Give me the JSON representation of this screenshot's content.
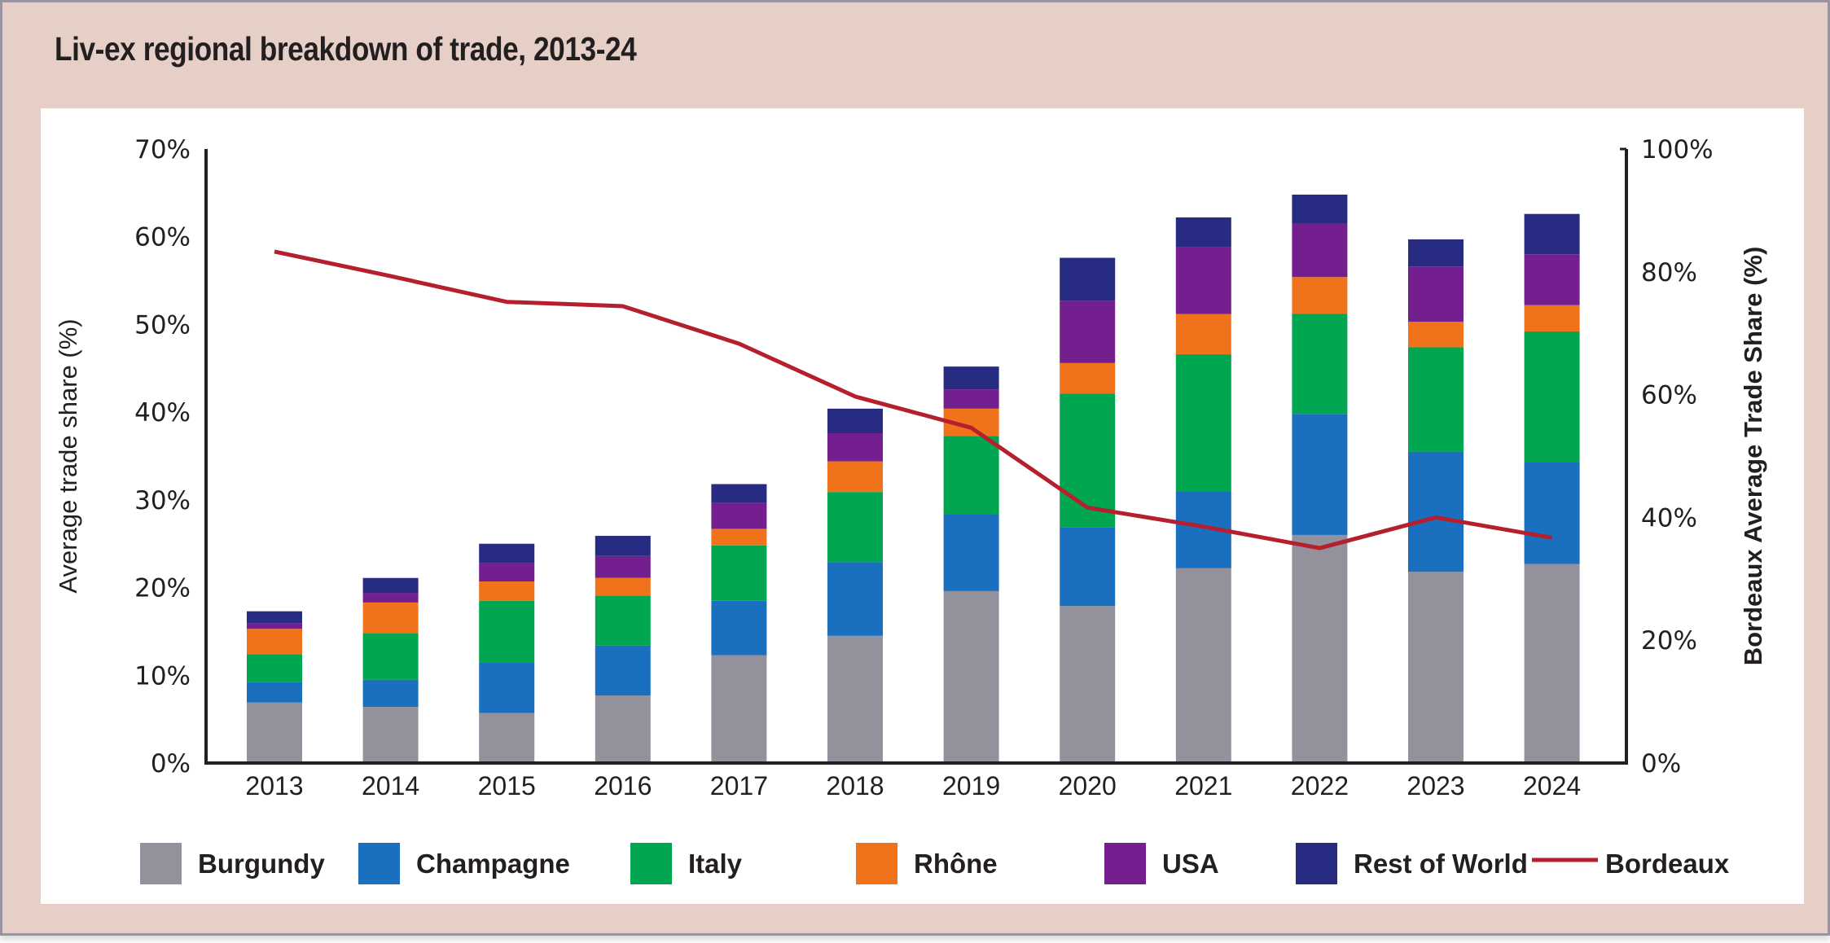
{
  "chart_data": {
    "type": "bar",
    "stacked": true,
    "title": "Liv-ex regional breakdown of trade, 2013-24",
    "xlabel": "",
    "ylabel": "Average trade share (%)",
    "y2label": "Bordeaux Average Trade Share (%)",
    "ylim": [
      0,
      70
    ],
    "y2lim": [
      0,
      100
    ],
    "yticks": [
      "0%",
      "10%",
      "20%",
      "30%",
      "40%",
      "50%",
      "60%",
      "70%"
    ],
    "y2ticks": [
      "0%",
      "20%",
      "40%",
      "60%",
      "80%",
      "100%"
    ],
    "grid": false,
    "legend_position": "bottom",
    "categories": [
      "2013",
      "2014",
      "2015",
      "2016",
      "2017",
      "2018",
      "2019",
      "2020",
      "2021",
      "2022",
      "2023",
      "2024"
    ],
    "series": [
      {
        "name": "Burgundy",
        "color": "#93929c",
        "axis": "left",
        "type": "bar",
        "values": [
          6.9,
          6.4,
          5.7,
          7.7,
          12.3,
          14.5,
          19.6,
          17.9,
          22.2,
          26.0,
          21.8,
          22.7
        ]
      },
      {
        "name": "Champagne",
        "color": "#1a6fbf",
        "axis": "left",
        "type": "bar",
        "values": [
          2.3,
          3.1,
          5.8,
          5.7,
          6.2,
          8.4,
          8.8,
          9.0,
          8.8,
          13.8,
          13.7,
          11.6
        ]
      },
      {
        "name": "Italy",
        "color": "#00a650",
        "axis": "left",
        "type": "bar",
        "values": [
          3.2,
          5.3,
          7.0,
          5.7,
          6.3,
          8.0,
          8.9,
          15.2,
          15.6,
          11.4,
          11.9,
          14.9
        ]
      },
      {
        "name": "Rhône",
        "color": "#f0731c",
        "axis": "left",
        "type": "bar",
        "values": [
          2.9,
          3.5,
          2.2,
          2.0,
          1.9,
          3.5,
          3.1,
          3.5,
          4.6,
          4.2,
          2.9,
          3.0
        ]
      },
      {
        "name": "USA",
        "color": "#731f8f",
        "axis": "left",
        "type": "bar",
        "values": [
          0.6,
          1.1,
          2.1,
          2.5,
          3.0,
          3.2,
          2.2,
          7.1,
          7.6,
          6.1,
          6.3,
          5.8
        ]
      },
      {
        "name": "Rest of World",
        "color": "#272c82",
        "axis": "left",
        "type": "bar",
        "values": [
          1.4,
          1.7,
          2.2,
          2.3,
          2.1,
          2.8,
          2.6,
          4.9,
          3.4,
          3.3,
          3.1,
          4.6
        ]
      },
      {
        "name": "Bordeaux",
        "color": "#b51f2e",
        "axis": "right",
        "type": "line",
        "values": [
          83.3,
          79.3,
          75.1,
          74.4,
          68.3,
          59.7,
          54.6,
          41.6,
          38.5,
          35.0,
          40.0,
          36.7
        ]
      }
    ]
  }
}
